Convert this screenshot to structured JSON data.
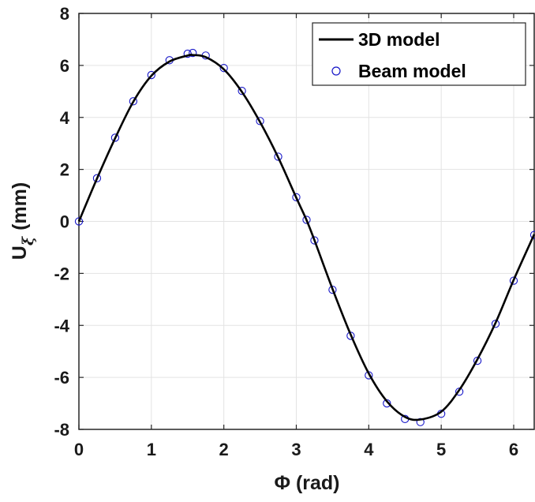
{
  "chart_data": {
    "type": "line",
    "xlabel": "Φ (rad)",
    "ylabel_main": "U",
    "ylabel_sub": "ξ",
    "ylabel_unit": "(mm)",
    "xlim": [
      0,
      6.2832
    ],
    "ylim": [
      -8,
      8
    ],
    "x_ticks": [
      0,
      1,
      2,
      3,
      4,
      5,
      6
    ],
    "y_ticks": [
      -8,
      -6,
      -4,
      -2,
      0,
      2,
      4,
      6,
      8
    ],
    "x_tick_labels": [
      "0",
      "1",
      "2",
      "3",
      "4",
      "5",
      "6"
    ],
    "y_tick_labels": [
      "-8",
      "-6",
      "-4",
      "-2",
      "0",
      "2",
      "4",
      "6",
      "8"
    ],
    "grid": true,
    "legend_position": "top-right",
    "series": [
      {
        "name": "3D model",
        "style": "line",
        "color": "#000000",
        "x": [
          0,
          0.25,
          0.5,
          0.75,
          1.0,
          1.25,
          1.5,
          1.5708,
          1.75,
          2.0,
          2.25,
          2.5,
          2.75,
          3.0,
          3.1416,
          3.25,
          3.5,
          3.75,
          4.0,
          4.25,
          4.5,
          4.7124,
          5.0,
          5.25,
          5.5,
          5.75,
          6.0,
          6.2832
        ],
        "y": [
          0,
          1.65,
          3.2,
          4.6,
          5.6,
          6.15,
          6.38,
          6.4,
          6.32,
          5.85,
          4.98,
          3.82,
          2.46,
          0.91,
          0.05,
          -0.72,
          -2.6,
          -4.35,
          -5.85,
          -6.92,
          -7.52,
          -7.62,
          -7.32,
          -6.48,
          -5.3,
          -3.9,
          -2.25,
          -0.5
        ]
      },
      {
        "name": "Beam model",
        "style": "markers",
        "marker": "circle-open",
        "color": "#1515c8",
        "x": [
          0,
          0.25,
          0.5,
          0.75,
          1.0,
          1.25,
          1.5,
          1.5708,
          1.75,
          2.0,
          2.25,
          2.5,
          2.75,
          3.0,
          3.1416,
          3.25,
          3.5,
          3.75,
          4.0,
          4.25,
          4.5,
          4.7124,
          5.0,
          5.25,
          5.5,
          5.75,
          6.0,
          6.2832
        ],
        "y": [
          0,
          1.66,
          3.22,
          4.62,
          5.63,
          6.2,
          6.45,
          6.48,
          6.38,
          5.9,
          5.02,
          3.86,
          2.49,
          0.93,
          0.06,
          -0.73,
          -2.63,
          -4.4,
          -5.92,
          -7.0,
          -7.6,
          -7.72,
          -7.4,
          -6.55,
          -5.36,
          -3.94,
          -2.28,
          -0.52
        ]
      }
    ]
  }
}
